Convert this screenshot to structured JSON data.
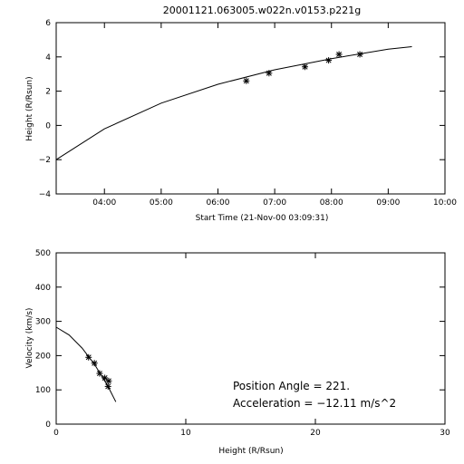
{
  "title": "20001121.063005.w022n.v0153.p221g",
  "chart_data": [
    {
      "type": "scatter",
      "xlabel": "Start Time (21-Nov-00 03:09:31)",
      "ylabel": "Height (R/Rsun)",
      "xlim": [
        "03:09",
        "10:00"
      ],
      "ylim": [
        -4,
        6
      ],
      "xticks": [
        "04:00",
        "05:00",
        "06:00",
        "07:00",
        "08:00",
        "09:00",
        "10:00"
      ],
      "yticks": [
        "−4",
        "−2",
        "0",
        "2",
        "4",
        "6"
      ],
      "x_format": "HH:MM",
      "series": [
        {
          "style": "markers",
          "points": [
            {
              "x": "06:30",
              "y": 2.6
            },
            {
              "x": "06:54",
              "y": 3.05
            },
            {
              "x": "07:32",
              "y": 3.42
            },
            {
              "x": "07:57",
              "y": 3.8
            },
            {
              "x": "08:08",
              "y": 4.15
            },
            {
              "x": "08:30",
              "y": 4.15
            }
          ]
        },
        {
          "style": "line",
          "points": [
            {
              "x": "03:09",
              "y": -2.0
            },
            {
              "x": "04:00",
              "y": -0.2
            },
            {
              "x": "05:00",
              "y": 1.3
            },
            {
              "x": "06:00",
              "y": 2.4
            },
            {
              "x": "07:00",
              "y": 3.25
            },
            {
              "x": "08:00",
              "y": 3.9
            },
            {
              "x": "09:00",
              "y": 4.45
            },
            {
              "x": "09:25",
              "y": 4.6
            }
          ]
        }
      ]
    },
    {
      "type": "scatter",
      "xlabel": "Height (R/Rsun)",
      "ylabel": "Velocity (km/s)",
      "xlim": [
        0,
        30
      ],
      "ylim": [
        0,
        500
      ],
      "xticks": [
        "0",
        "10",
        "20",
        "30"
      ],
      "yticks": [
        "0",
        "100",
        "200",
        "300",
        "400",
        "500"
      ],
      "series": [
        {
          "style": "markers",
          "points": [
            {
              "x": 2.5,
              "y": 195
            },
            {
              "x": 2.95,
              "y": 178
            },
            {
              "x": 3.35,
              "y": 148
            },
            {
              "x": 3.75,
              "y": 135
            },
            {
              "x": 4.05,
              "y": 126
            },
            {
              "x": 4.0,
              "y": 110
            }
          ]
        },
        {
          "style": "line",
          "points": [
            {
              "x": 0,
              "y": 283
            },
            {
              "x": 1,
              "y": 260
            },
            {
              "x": 2,
              "y": 222
            },
            {
              "x": 3,
              "y": 172
            },
            {
              "x": 4,
              "y": 110
            },
            {
              "x": 4.6,
              "y": 65
            }
          ]
        }
      ],
      "annotations": {
        "position_angle": "Position Angle =   221.",
        "acceleration": "Acceleration = −12.11 m/s^2"
      }
    }
  ]
}
